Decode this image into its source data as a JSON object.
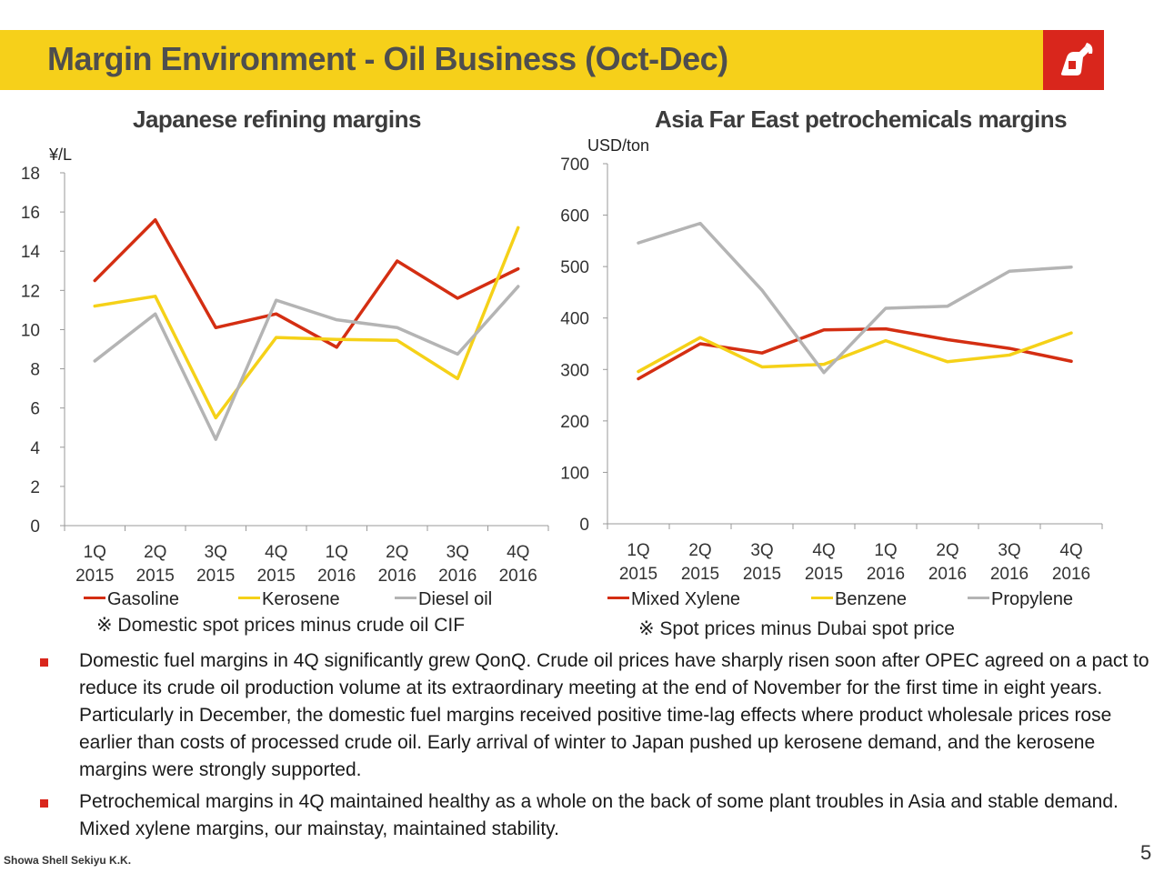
{
  "header": {
    "title": "Margin Environment - Oil Business (Oct-Dec)",
    "brand_color": "#f6d01a",
    "logo_color": "#d9261c",
    "logo_icon": "fuel-nozzle-icon"
  },
  "chart_data": [
    {
      "type": "line",
      "title": "Japanese refining margins",
      "ylabel": "¥/L",
      "ylim": [
        0,
        18
      ],
      "yticks": [
        "0",
        "2",
        "4",
        "6",
        "8",
        "10",
        "12",
        "14",
        "16",
        "18"
      ],
      "categories": [
        [
          "1Q",
          "2015"
        ],
        [
          "2Q",
          "2015"
        ],
        [
          "3Q",
          "2015"
        ],
        [
          "4Q",
          "2015"
        ],
        [
          "1Q",
          "2016"
        ],
        [
          "2Q",
          "2016"
        ],
        [
          "3Q",
          "2016"
        ],
        [
          "4Q",
          "2016"
        ]
      ],
      "series": [
        {
          "name": "Gasoline",
          "color": "#d42e12",
          "values": [
            12.5,
            15.6,
            10.1,
            10.8,
            9.1,
            13.5,
            11.6,
            13.1
          ]
        },
        {
          "name": "Kerosene",
          "color": "#f5d118",
          "values": [
            11.2,
            11.7,
            5.5,
            9.6,
            9.5,
            9.45,
            7.5,
            15.2
          ]
        },
        {
          "name": "Diesel oil",
          "color": "#b4b4b4",
          "values": [
            8.4,
            10.8,
            4.4,
            11.5,
            10.5,
            10.1,
            8.75,
            12.2
          ]
        }
      ],
      "grid": false,
      "legend": "bottom",
      "note": "※ Domestic spot prices minus crude oil CIF"
    },
    {
      "type": "line",
      "title": "Asia Far East petrochemicals margins",
      "ylabel": "USD/ton",
      "ylim": [
        0,
        700
      ],
      "yticks": [
        "0",
        "100",
        "200",
        "300",
        "400",
        "500",
        "600",
        "700"
      ],
      "categories": [
        [
          "1Q",
          "2015"
        ],
        [
          "2Q",
          "2015"
        ],
        [
          "3Q",
          "2015"
        ],
        [
          "4Q",
          "2015"
        ],
        [
          "1Q",
          "2016"
        ],
        [
          "2Q",
          "2016"
        ],
        [
          "3Q",
          "2016"
        ],
        [
          "4Q",
          "2016"
        ]
      ],
      "series": [
        {
          "name": "Mixed Xylene",
          "color": "#d42e12",
          "values": [
            282,
            350,
            332,
            377,
            379,
            358,
            341,
            316
          ]
        },
        {
          "name": "Benzene",
          "color": "#f5d118",
          "values": [
            296,
            362,
            305,
            310,
            356,
            315,
            328,
            371
          ]
        },
        {
          "name": "Propylene",
          "color": "#b4b4b4",
          "values": [
            546,
            584,
            454,
            294,
            419,
            423,
            491,
            499
          ]
        }
      ],
      "grid": false,
      "legend": "bottom",
      "note": "※ Spot prices minus Dubai spot price"
    }
  ],
  "bullets": [
    "Domestic fuel margins in 4Q significantly grew QonQ. Crude oil prices have sharply risen soon after OPEC agreed on a pact to reduce its crude oil production volume at its extraordinary meeting at the end of November for the first time in eight years. Particularly in December, the domestic fuel margins received positive time-lag effects where product wholesale prices rose earlier than costs of processed crude oil. Early arrival of winter to Japan pushed up kerosene demand, and the kerosene margins were strongly supported.",
    "Petrochemical margins in 4Q maintained healthy as a whole on the back of some plant troubles in Asia and stable demand. Mixed xylene margins, our mainstay, maintained stability."
  ],
  "footer": {
    "company": "Showa Shell Sekiyu K.K.",
    "page": "5"
  }
}
